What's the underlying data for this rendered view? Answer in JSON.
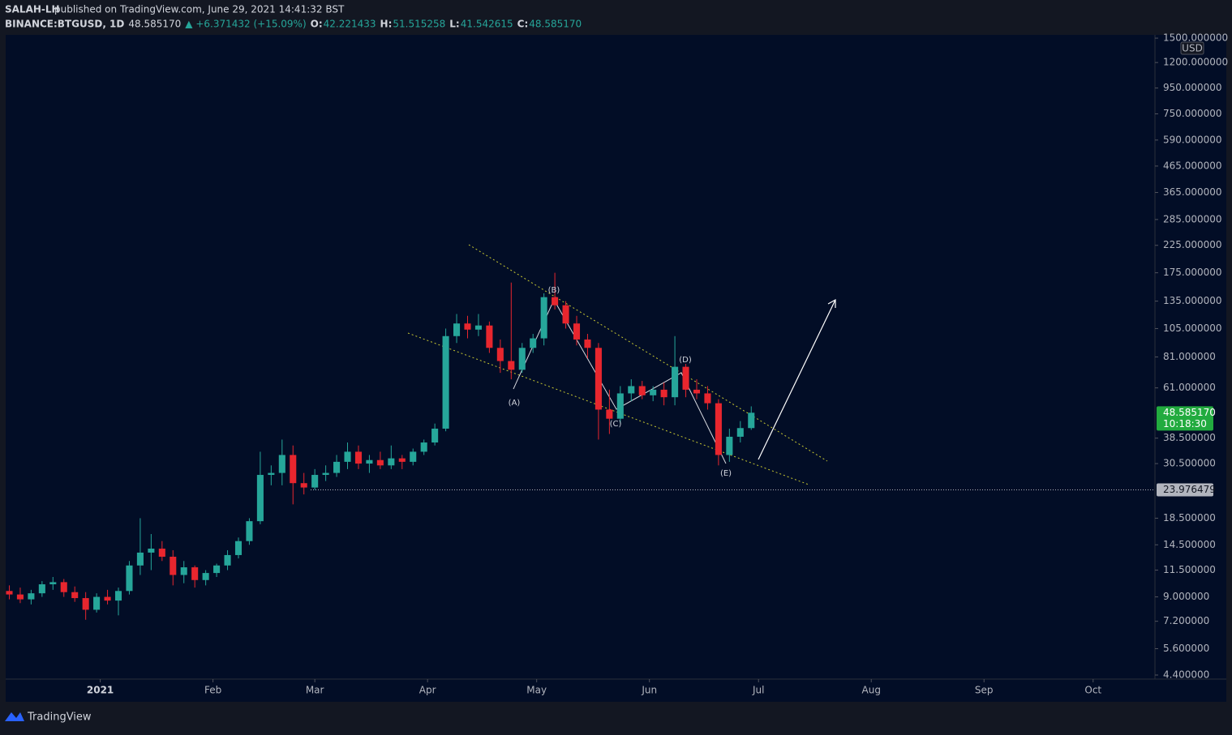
{
  "header": {
    "publisher": "SALAH-LH",
    "published": "published on TradingView.com, June 29, 2021 14:41:32 BST",
    "symbol": "BINANCE:BTGUSD, 1D",
    "last": "48.585170",
    "change": "▲ +6.371432 (+15.09%)",
    "ohlc": [
      {
        "label": "O:",
        "value": "42.221433"
      },
      {
        "label": "H:",
        "value": "51.515258"
      },
      {
        "label": "L:",
        "value": "41.542615"
      },
      {
        "label": "C:",
        "value": "48.585170"
      }
    ]
  },
  "footer": {
    "brand": "TradingView"
  },
  "chart_data": {
    "type": "candlestick",
    "currency": "USD",
    "log_scale": true,
    "up_color": "#26a69a",
    "down_color": "#e8262e",
    "x": [
      "2020-12-07",
      "2020-12-10",
      "2020-12-13",
      "2020-12-16",
      "2020-12-19",
      "2020-12-22",
      "2020-12-25",
      "2020-12-28",
      "2020-12-31",
      "2021-01-03",
      "2021-01-06",
      "2021-01-09",
      "2021-01-12",
      "2021-01-15",
      "2021-01-18",
      "2021-01-21",
      "2021-01-24",
      "2021-01-27",
      "2021-01-30",
      "2021-02-02",
      "2021-02-05",
      "2021-02-08",
      "2021-02-11",
      "2021-02-14",
      "2021-02-17",
      "2021-02-20",
      "2021-02-23",
      "2021-02-26",
      "2021-03-01",
      "2021-03-04",
      "2021-03-07",
      "2021-03-10",
      "2021-03-13",
      "2021-03-16",
      "2021-03-19",
      "2021-03-22",
      "2021-03-25",
      "2021-03-28",
      "2021-03-31",
      "2021-04-03",
      "2021-04-06",
      "2021-04-09",
      "2021-04-12",
      "2021-04-15",
      "2021-04-18",
      "2021-04-21",
      "2021-04-24",
      "2021-04-27",
      "2021-04-30",
      "2021-05-03",
      "2021-05-06",
      "2021-05-09",
      "2021-05-12",
      "2021-05-15",
      "2021-05-18",
      "2021-05-21",
      "2021-05-24",
      "2021-05-27",
      "2021-05-30",
      "2021-06-02",
      "2021-06-05",
      "2021-06-08",
      "2021-06-11",
      "2021-06-14",
      "2021-06-17",
      "2021-06-20",
      "2021-06-23",
      "2021-06-26",
      "2021-06-29"
    ],
    "open": [
      9.5,
      9.2,
      8.8,
      9.3,
      10.1,
      10.3,
      9.4,
      8.9,
      8.0,
      9.0,
      8.7,
      9.5,
      12.0,
      13.5,
      14.0,
      13.0,
      11.0,
      11.8,
      10.5,
      11.2,
      12.0,
      13.2,
      15.0,
      18.0,
      27.5,
      28,
      33,
      25.5,
      24.5,
      27.5,
      28,
      31,
      34,
      30.5,
      31.5,
      30,
      32,
      31,
      34,
      37,
      42,
      98,
      110,
      104,
      108,
      88,
      78,
      72,
      88,
      96,
      140,
      130,
      110,
      95,
      88,
      50,
      46,
      58,
      62,
      57,
      60,
      56,
      74,
      60,
      58,
      53,
      33,
      39,
      42.221433
    ],
    "high": [
      10,
      9.8,
      9.6,
      10.4,
      10.8,
      10.6,
      9.9,
      9.4,
      9.3,
      9.6,
      9.8,
      12.5,
      18.5,
      16.0,
      15.0,
      13.8,
      12.5,
      12.0,
      11.5,
      12.2,
      13.8,
      15.5,
      18.5,
      34,
      30,
      38,
      36,
      28,
      29,
      30,
      33,
      37,
      36,
      33,
      34,
      36,
      33,
      35,
      38,
      44,
      105,
      120,
      118,
      120,
      112,
      95,
      160,
      92,
      100,
      145,
      175,
      135,
      118,
      100,
      92,
      60,
      62,
      66,
      65,
      62,
      64,
      98,
      76,
      66,
      62,
      55,
      42,
      45,
      51.515258
    ],
    "low": [
      8.8,
      8.5,
      8.4,
      9.0,
      9.6,
      9.0,
      8.6,
      7.3,
      7.8,
      8.4,
      7.6,
      9.2,
      11.0,
      11.5,
      12.5,
      10.0,
      10.2,
      9.8,
      10.0,
      10.8,
      11.5,
      12.8,
      14.5,
      17.5,
      25,
      25,
      21,
      23,
      24,
      26,
      27,
      29,
      29,
      28,
      29,
      29,
      29,
      30,
      33,
      36,
      41,
      92,
      96,
      98,
      84,
      70,
      66,
      70,
      84,
      90,
      125,
      105,
      90,
      80,
      38,
      40,
      44,
      54,
      55,
      54,
      52,
      52,
      56,
      55,
      50,
      30,
      31,
      37,
      41.542615
    ],
    "close": [
      9.2,
      8.8,
      9.3,
      10.1,
      10.3,
      9.4,
      8.9,
      8.0,
      9.0,
      8.7,
      9.5,
      12.0,
      13.5,
      14.0,
      13.0,
      11.0,
      11.8,
      10.5,
      11.2,
      12.0,
      13.2,
      15.0,
      18.0,
      27.5,
      28,
      33,
      25.5,
      24.5,
      27.5,
      28,
      31,
      34,
      30.5,
      31.5,
      30,
      32,
      31,
      34,
      37,
      42,
      98,
      110,
      104,
      108,
      88,
      78,
      72,
      88,
      96,
      140,
      130,
      110,
      95,
      88,
      50,
      46,
      58,
      62,
      57,
      60,
      56,
      74,
      60,
      58,
      53,
      33,
      39,
      42.221433,
      48.58517
    ],
    "xlim": [
      "2020-12-06",
      "2021-10-18"
    ],
    "xticks": [
      {
        "value": "2021-01-01",
        "label": "2021"
      },
      {
        "value": "2021-02-01",
        "label": "Feb"
      },
      {
        "value": "2021-03-01",
        "label": "Mar"
      },
      {
        "value": "2021-04-01",
        "label": "Apr"
      },
      {
        "value": "2021-05-01",
        "label": "May"
      },
      {
        "value": "2021-06-01",
        "label": "Jun"
      },
      {
        "value": "2021-07-01",
        "label": "Jul"
      },
      {
        "value": "2021-08-01",
        "label": "Aug"
      },
      {
        "value": "2021-09-01",
        "label": "Sep"
      },
      {
        "value": "2021-10-01",
        "label": "Oct"
      }
    ],
    "ylim": [
      4.24,
      1546
    ],
    "yticks": [
      {
        "value": 1500,
        "label": "1500.000000"
      },
      {
        "value": 1200,
        "label": "1200.000000"
      },
      {
        "value": 950,
        "label": "950.000000"
      },
      {
        "value": 750,
        "label": "750.000000"
      },
      {
        "value": 590,
        "label": "590.000000"
      },
      {
        "value": 465,
        "label": "465.000000"
      },
      {
        "value": 365,
        "label": "365.000000"
      },
      {
        "value": 285,
        "label": "285.000000"
      },
      {
        "value": 225,
        "label": "225.000000"
      },
      {
        "value": 175,
        "label": "175.000000"
      },
      {
        "value": 135,
        "label": "135.000000"
      },
      {
        "value": 105,
        "label": "105.000000"
      },
      {
        "value": 81,
        "label": "81.000000"
      },
      {
        "value": 61,
        "label": "61.000000"
      },
      {
        "value": 38.5,
        "label": "38.500000"
      },
      {
        "value": 30.5,
        "label": "30.500000"
      },
      {
        "value": 18.5,
        "label": "18.500000"
      },
      {
        "value": 14.5,
        "label": "14.500000"
      },
      {
        "value": 11.5,
        "label": "11.500000"
      },
      {
        "value": 9,
        "label": "9.000000"
      },
      {
        "value": 7.2,
        "label": "7.200000"
      },
      {
        "value": 5.6,
        "label": "5.600000"
      },
      {
        "value": 4.4,
        "label": "4.400000"
      }
    ],
    "last_price": {
      "value": 48.58517,
      "label": "48.585170"
    },
    "countdown": "10:18:30",
    "hline": {
      "value": 23.976479,
      "label": "23.976479"
    },
    "annotations": [
      "(A)",
      "(B)",
      "(C)",
      "(D)",
      "(E)"
    ]
  }
}
